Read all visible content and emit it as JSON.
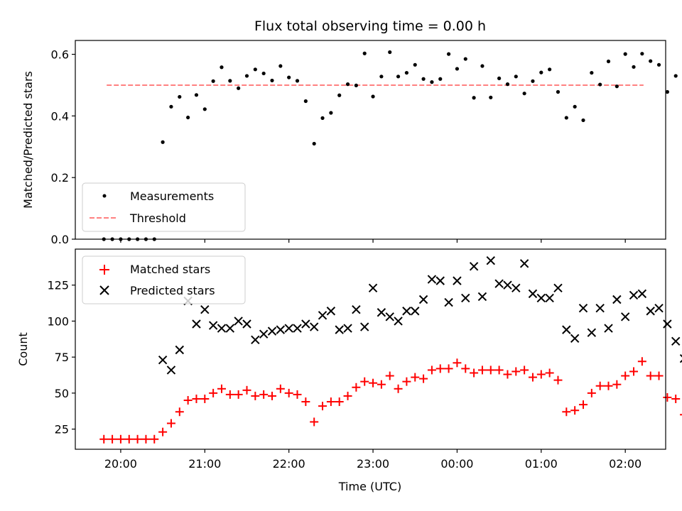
{
  "chart_data": [
    {
      "type": "scatter",
      "title": "Flux total observing time = 0.00 h",
      "xlabel": "",
      "ylabel": "Matched/Predicted stars",
      "x_range_hours": [
        19.46,
        26.48
      ],
      "ylim": [
        0,
        0.645
      ],
      "yticks": [
        0.0,
        0.2,
        0.4,
        0.6
      ],
      "ytick_labels": [
        "0.0",
        "0.2",
        "0.4",
        "0.6"
      ],
      "grid": false,
      "legend_position": "lower-left",
      "legend": [
        "Measurements",
        "Threshold"
      ],
      "colors": {
        "measurements": "#000000",
        "threshold": "#ff8080"
      },
      "threshold": {
        "value": 0.5,
        "x_start": "19:50",
        "x_end": "02:13"
      },
      "series": [
        {
          "name": "Measurements",
          "marker": "dot",
          "points": [
            [
              "19:48",
              0.0
            ],
            [
              "19:54",
              0.0
            ],
            [
              "20:00",
              0.0
            ],
            [
              "20:06",
              0.0
            ],
            [
              "20:12",
              0.0
            ],
            [
              "20:18",
              0.0
            ],
            [
              "20:24",
              0.0
            ],
            [
              "20:30",
              0.315
            ],
            [
              "20:36",
              0.43
            ],
            [
              "20:42",
              0.462
            ],
            [
              "20:48",
              0.395
            ],
            [
              "20:54",
              0.468
            ],
            [
              "21:00",
              0.422
            ],
            [
              "21:06",
              0.513
            ],
            [
              "21:12",
              0.558
            ],
            [
              "21:18",
              0.514
            ],
            [
              "21:24",
              0.49
            ],
            [
              "21:30",
              0.53
            ],
            [
              "21:36",
              0.551
            ],
            [
              "21:42",
              0.538
            ],
            [
              "21:48",
              0.515
            ],
            [
              "21:54",
              0.562
            ],
            [
              "22:00",
              0.525
            ],
            [
              "22:06",
              0.514
            ],
            [
              "22:12",
              0.448
            ],
            [
              "22:18",
              0.31
            ],
            [
              "22:24",
              0.393
            ],
            [
              "22:30",
              0.41
            ],
            [
              "22:36",
              0.467
            ],
            [
              "22:42",
              0.503
            ],
            [
              "22:48",
              0.499
            ],
            [
              "22:54",
              0.603
            ],
            [
              "23:00",
              0.463
            ],
            [
              "23:06",
              0.528
            ],
            [
              "23:12",
              0.607
            ],
            [
              "23:18",
              0.528
            ],
            [
              "23:24",
              0.54
            ],
            [
              "23:30",
              0.566
            ],
            [
              "23:36",
              0.52
            ],
            [
              "23:42",
              0.51
            ],
            [
              "23:48",
              0.52
            ],
            [
              "23:54",
              0.601
            ],
            [
              "00:00",
              0.553
            ],
            [
              "00:06",
              0.585
            ],
            [
              "00:12",
              0.459
            ],
            [
              "00:18",
              0.562
            ],
            [
              "00:24",
              0.46
            ],
            [
              "00:30",
              0.522
            ],
            [
              "00:36",
              0.503
            ],
            [
              "00:42",
              0.528
            ],
            [
              "00:48",
              0.473
            ],
            [
              "00:54",
              0.513
            ],
            [
              "01:00",
              0.541
            ],
            [
              "01:06",
              0.551
            ],
            [
              "01:12",
              0.478
            ],
            [
              "01:18",
              0.394
            ],
            [
              "01:24",
              0.43
            ],
            [
              "01:30",
              0.386
            ],
            [
              "01:36",
              0.54
            ],
            [
              "01:42",
              0.502
            ],
            [
              "01:48",
              0.577
            ],
            [
              "01:54",
              0.496
            ],
            [
              "02:00",
              0.601
            ],
            [
              "02:06",
              0.559
            ],
            [
              "02:12",
              0.602
            ],
            [
              "02:18",
              0.578
            ],
            [
              "02:24",
              0.566
            ],
            [
              "02:30",
              0.478
            ],
            [
              "02:36",
              0.53
            ],
            [
              "02:42",
              0.472
            ],
            [
              "02:48",
              0.571
            ],
            [
              "02:54",
              0.0
            ],
            [
              "03:00",
              0.0
            ],
            [
              "03:06",
              0.0
            ],
            [
              "03:12",
              0.0
            ],
            [
              "03:24",
              0.0
            ]
          ]
        }
      ]
    },
    {
      "type": "scatter",
      "title": "",
      "xlabel": "Time (UTC)",
      "ylabel": "Count",
      "x_range_hours": [
        19.46,
        26.48
      ],
      "ylim": [
        11,
        150
      ],
      "yticks": [
        25,
        50,
        75,
        100,
        125
      ],
      "ytick_labels": [
        "25",
        "50",
        "75",
        "100",
        "125"
      ],
      "xticks_hours": [
        20,
        21,
        22,
        23,
        24,
        25,
        26
      ],
      "xtick_labels": [
        "20:00",
        "21:00",
        "22:00",
        "23:00",
        "00:00",
        "01:00",
        "02:00"
      ],
      "grid": false,
      "legend_position": "top-left",
      "legend": [
        "Matched stars",
        "Predicted stars"
      ],
      "colors": {
        "matched": "#ff0000",
        "predicted": "#000000"
      },
      "series": [
        {
          "name": "Matched stars",
          "marker": "plus",
          "points": [
            [
              "19:48",
              18
            ],
            [
              "19:54",
              18
            ],
            [
              "20:00",
              18
            ],
            [
              "20:06",
              18
            ],
            [
              "20:12",
              18
            ],
            [
              "20:18",
              18
            ],
            [
              "20:24",
              18
            ],
            [
              "20:30",
              23
            ],
            [
              "20:36",
              29
            ],
            [
              "20:42",
              37
            ],
            [
              "20:48",
              45
            ],
            [
              "20:54",
              46
            ],
            [
              "21:00",
              46
            ],
            [
              "21:06",
              50
            ],
            [
              "21:12",
              53
            ],
            [
              "21:18",
              49
            ],
            [
              "21:24",
              49
            ],
            [
              "21:30",
              52
            ],
            [
              "21:36",
              48
            ],
            [
              "21:42",
              49
            ],
            [
              "21:48",
              48
            ],
            [
              "21:54",
              53
            ],
            [
              "22:00",
              50
            ],
            [
              "22:06",
              49
            ],
            [
              "22:12",
              44
            ],
            [
              "22:18",
              30
            ],
            [
              "22:24",
              41
            ],
            [
              "22:30",
              44
            ],
            [
              "22:36",
              44
            ],
            [
              "22:42",
              48
            ],
            [
              "22:48",
              54
            ],
            [
              "22:54",
              58
            ],
            [
              "23:00",
              57
            ],
            [
              "23:06",
              56
            ],
            [
              "23:12",
              62
            ],
            [
              "23:18",
              53
            ],
            [
              "23:24",
              58
            ],
            [
              "23:30",
              61
            ],
            [
              "23:36",
              60
            ],
            [
              "23:42",
              66
            ],
            [
              "23:48",
              67
            ],
            [
              "23:54",
              67
            ],
            [
              "00:00",
              71
            ],
            [
              "00:06",
              67
            ],
            [
              "00:12",
              64
            ],
            [
              "00:18",
              66
            ],
            [
              "00:24",
              66
            ],
            [
              "00:30",
              66
            ],
            [
              "00:36",
              63
            ],
            [
              "00:42",
              65
            ],
            [
              "00:48",
              66
            ],
            [
              "00:54",
              61
            ],
            [
              "01:00",
              63
            ],
            [
              "01:06",
              64
            ],
            [
              "01:12",
              59
            ],
            [
              "01:18",
              37
            ],
            [
              "01:24",
              38
            ],
            [
              "01:30",
              42
            ],
            [
              "01:36",
              50
            ],
            [
              "01:42",
              55
            ],
            [
              "01:48",
              55
            ],
            [
              "01:54",
              56
            ],
            [
              "02:00",
              62
            ],
            [
              "02:06",
              65
            ],
            [
              "02:12",
              72
            ],
            [
              "02:18",
              62
            ],
            [
              "02:24",
              62
            ],
            [
              "02:30",
              47
            ],
            [
              "02:36",
              46
            ],
            [
              "02:42",
              35
            ],
            [
              "02:48",
              28
            ],
            [
              "02:54",
              28
            ],
            [
              "03:00",
              28
            ],
            [
              "03:06",
              28
            ],
            [
              "03:12",
              28
            ],
            [
              "03:24",
              28
            ]
          ]
        },
        {
          "name": "Predicted stars",
          "marker": "x",
          "points": [
            [
              "20:30",
              73
            ],
            [
              "20:36",
              66
            ],
            [
              "20:42",
              80
            ],
            [
              "20:48",
              114
            ],
            [
              "20:54",
              98
            ],
            [
              "21:00",
              108
            ],
            [
              "21:06",
              97
            ],
            [
              "21:12",
              95
            ],
            [
              "21:18",
              95
            ],
            [
              "21:24",
              100
            ],
            [
              "21:30",
              98
            ],
            [
              "21:36",
              87
            ],
            [
              "21:42",
              91
            ],
            [
              "21:48",
              93
            ],
            [
              "21:54",
              94
            ],
            [
              "22:00",
              95
            ],
            [
              "22:06",
              95
            ],
            [
              "22:12",
              98
            ],
            [
              "22:18",
              96
            ],
            [
              "22:24",
              104
            ],
            [
              "22:30",
              107
            ],
            [
              "22:36",
              94
            ],
            [
              "22:42",
              95
            ],
            [
              "22:48",
              108
            ],
            [
              "22:54",
              96
            ],
            [
              "23:00",
              123
            ],
            [
              "23:06",
              106
            ],
            [
              "23:12",
              103
            ],
            [
              "23:18",
              100
            ],
            [
              "23:24",
              107
            ],
            [
              "23:30",
              107
            ],
            [
              "23:36",
              115
            ],
            [
              "23:42",
              129
            ],
            [
              "23:48",
              128
            ],
            [
              "23:54",
              113
            ],
            [
              "00:00",
              128
            ],
            [
              "00:06",
              116
            ],
            [
              "00:12",
              138
            ],
            [
              "00:18",
              117
            ],
            [
              "00:24",
              142
            ],
            [
              "00:30",
              126
            ],
            [
              "00:36",
              125
            ],
            [
              "00:42",
              123
            ],
            [
              "00:48",
              140
            ],
            [
              "00:54",
              119
            ],
            [
              "01:00",
              116
            ],
            [
              "01:06",
              116
            ],
            [
              "01:12",
              123
            ],
            [
              "01:18",
              94
            ],
            [
              "01:24",
              88
            ],
            [
              "01:30",
              109
            ],
            [
              "01:36",
              92
            ],
            [
              "01:42",
              109
            ],
            [
              "01:48",
              95
            ],
            [
              "01:54",
              115
            ],
            [
              "02:00",
              103
            ],
            [
              "02:06",
              118
            ],
            [
              "02:12",
              119
            ],
            [
              "02:18",
              107
            ],
            [
              "02:24",
              109
            ],
            [
              "02:30",
              98
            ],
            [
              "02:36",
              86
            ],
            [
              "02:42",
              74
            ],
            [
              "02:48",
              49
            ]
          ]
        }
      ]
    }
  ]
}
